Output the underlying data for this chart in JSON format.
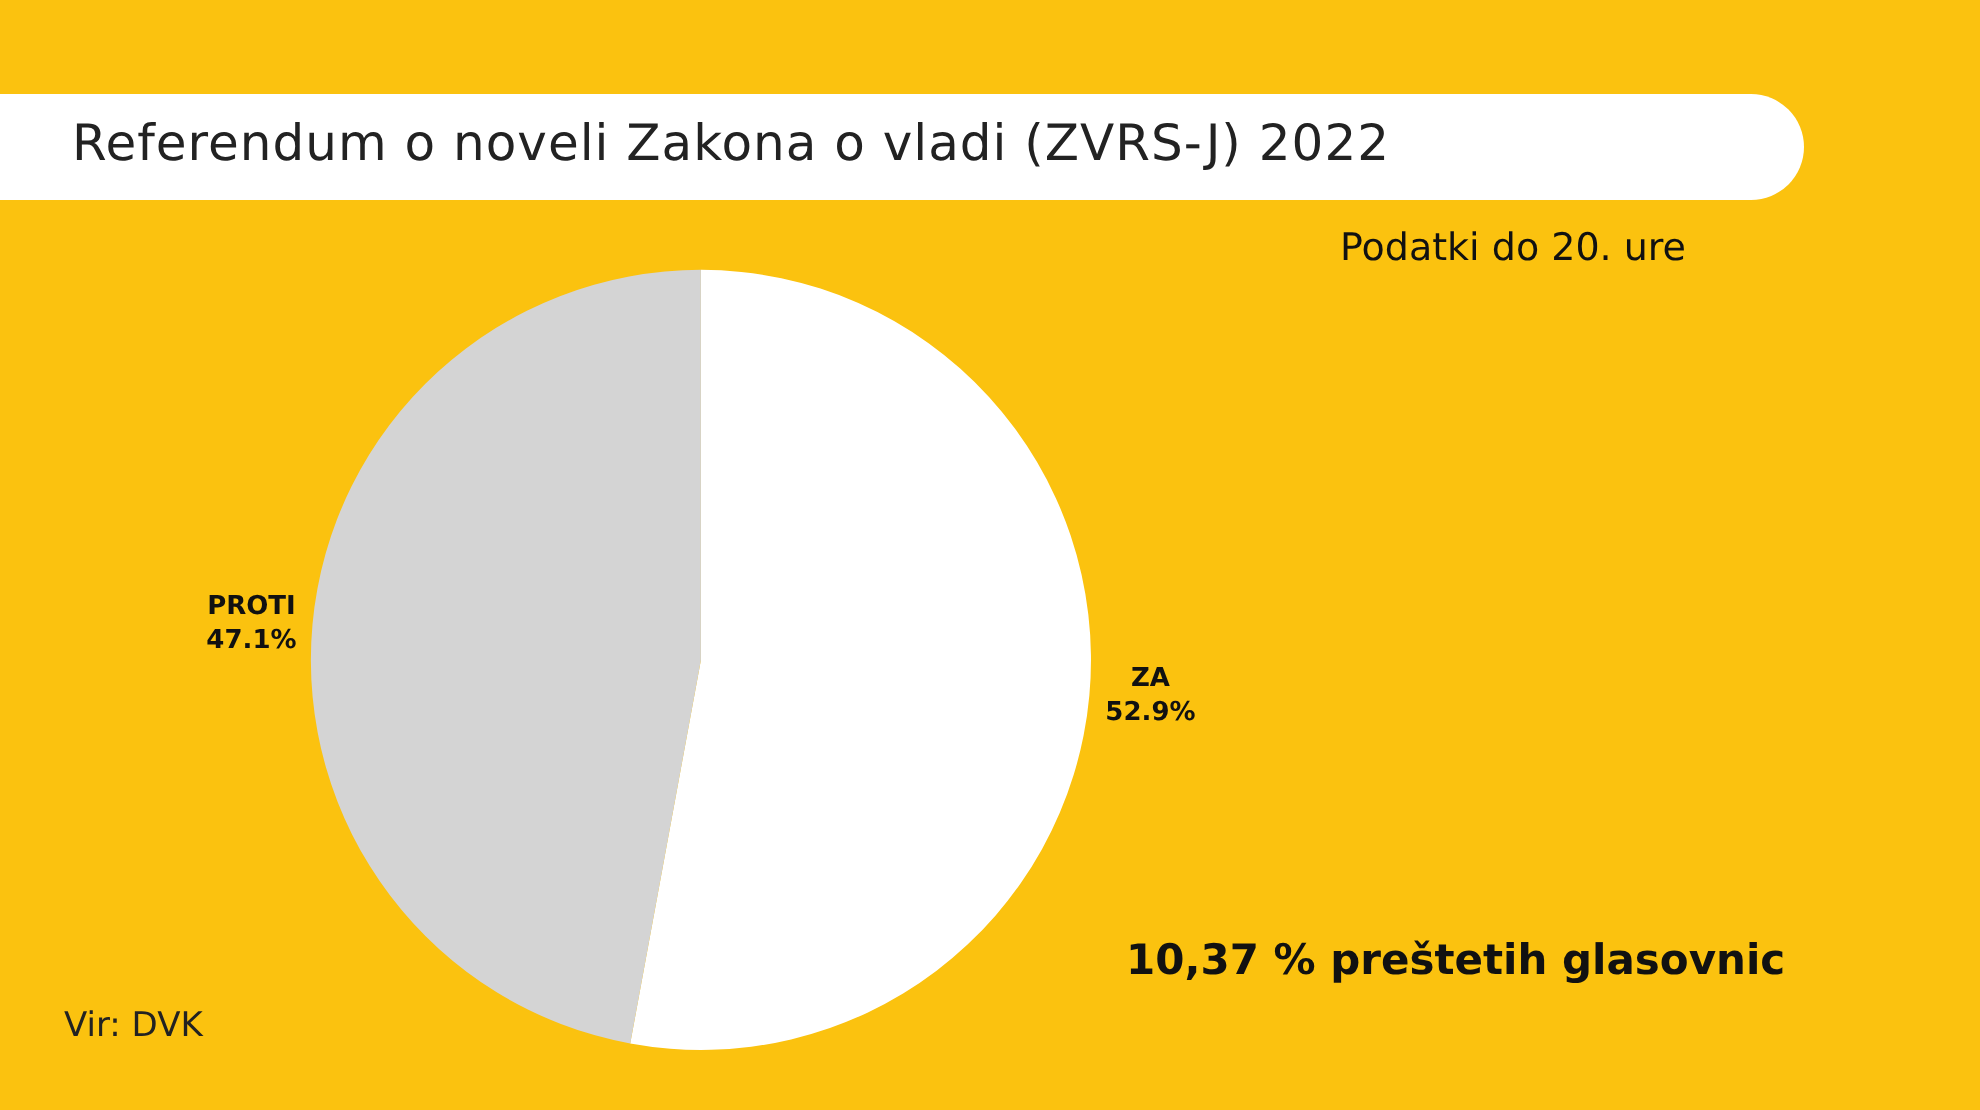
{
  "chart_data": {
    "type": "pie",
    "title": "Referendum o noveli Zakona o vladi (ZVRS-J) 2022",
    "subtitle": "Podatki do 20. ure",
    "categories": [
      "ZA",
      "PROTI"
    ],
    "values": [
      52.9,
      47.1
    ],
    "colors": [
      "#ffffff",
      "#d4d4d4"
    ],
    "value_labels": [
      "52.9%",
      "47.1%"
    ],
    "annotations": [
      "10,37 % preštetih glasovnic",
      "Vir: DVK"
    ]
  }
}
